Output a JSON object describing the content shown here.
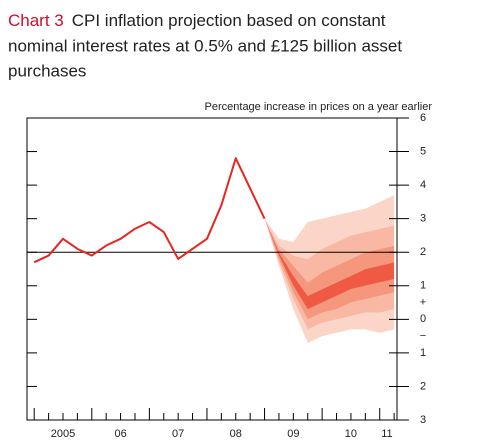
{
  "chart_data": {
    "type": "fan",
    "title_label": "Chart 3",
    "title_lines": [
      "CPI inflation projection based on constant",
      "nominal interest rates at 0.5% and £125 billion asset",
      "purchases"
    ],
    "y_axis_label": "Percentage increase in prices on a year earlier",
    "xlim": [
      2004.875,
      2011.3
    ],
    "ylim": [
      -3,
      6
    ],
    "yticks": [
      6,
      5,
      4,
      3,
      2,
      1,
      0,
      {
        "value": -1,
        "label": "1"
      },
      {
        "value": -2,
        "label": "2"
      },
      {
        "value": -3,
        "label": "3"
      }
    ],
    "sign_labels": [
      "+",
      "−"
    ],
    "xticks": [
      {
        "value": 2005.5,
        "label": "2005"
      },
      {
        "value": 2006.5,
        "label": "06"
      },
      {
        "value": 2007.5,
        "label": "07"
      },
      {
        "value": 2008.5,
        "label": "08"
      },
      {
        "value": 2009.5,
        "label": "09"
      },
      {
        "value": 2010.5,
        "label": "10"
      },
      {
        "value": 2011.125,
        "label": "11"
      }
    ],
    "xminor_ticks": [
      2005,
      2005.25,
      2005.5,
      2005.75,
      2006,
      2006.25,
      2006.5,
      2006.75,
      2007,
      2007.25,
      2007.5,
      2007.75,
      2008,
      2008.25,
      2008.5,
      2008.75,
      2009,
      2009.25,
      2009.5,
      2009.75,
      2010,
      2010.25,
      2010.5,
      2010.75,
      2011,
      2011.25
    ],
    "reference_line": 2,
    "series": [
      {
        "color": "#e8251f",
        "x": [
          2005,
          2005.25,
          2005.5,
          2005.75,
          2006,
          2006.25,
          2006.5,
          2006.75,
          2007,
          2007.25,
          2007.5,
          2007.75,
          2008,
          2008.25,
          2008.5,
          2008.75,
          2009
        ],
        "values": [
          1.7,
          1.9,
          2.4,
          2.1,
          1.9,
          2.2,
          2.4,
          2.7,
          2.9,
          2.6,
          1.8,
          2.1,
          2.4,
          3.4,
          4.8,
          3.9,
          3.0
        ]
      }
    ],
    "fan": {
      "x": [
        2009,
        2009.25,
        2009.5,
        2009.75,
        2010,
        2010.25,
        2010.5,
        2010.75,
        2011,
        2011.25
      ],
      "colors": [
        "#fbd5c8",
        "#f9b8a3",
        "#f5977c",
        "#ef5a45",
        "#f5977c",
        "#f9b8a3",
        "#fbd5c8"
      ],
      "bounds": [
        [
          3.0,
          1.6,
          0.3,
          -0.7,
          -0.5,
          -0.4,
          -0.3,
          -0.3,
          -0.4,
          -0.3
        ],
        [
          3.0,
          1.7,
          0.6,
          -0.3,
          -0.1,
          0.0,
          0.1,
          0.2,
          0.2,
          0.3
        ],
        [
          3.0,
          1.8,
          0.8,
          0.0,
          0.2,
          0.3,
          0.5,
          0.6,
          0.7,
          0.8
        ],
        [
          3.0,
          1.9,
          1.0,
          0.3,
          0.5,
          0.7,
          0.9,
          1.0,
          1.1,
          1.2
        ],
        [
          3.0,
          2.0,
          1.3,
          0.7,
          0.9,
          1.1,
          1.3,
          1.5,
          1.6,
          1.7
        ],
        [
          3.0,
          2.1,
          1.6,
          1.1,
          1.4,
          1.6,
          1.8,
          2.0,
          2.1,
          2.2
        ],
        [
          3.0,
          2.2,
          1.9,
          1.8,
          2.1,
          2.3,
          2.5,
          2.6,
          2.7,
          2.8
        ],
        [
          3.0,
          2.4,
          2.3,
          2.9,
          3.0,
          3.1,
          3.2,
          3.3,
          3.5,
          3.7
        ]
      ]
    }
  }
}
